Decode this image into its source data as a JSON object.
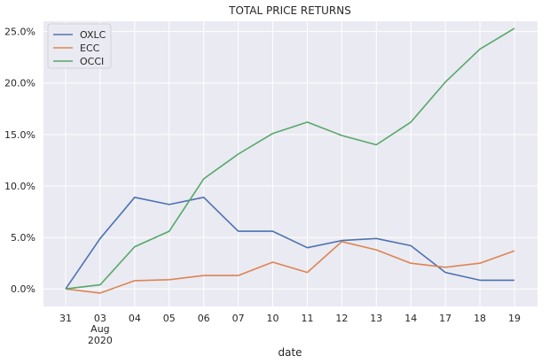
{
  "chart_data": {
    "type": "line",
    "title": "TOTAL PRICE RETURNS",
    "xlabel": "date",
    "ylabel": "",
    "categories": [
      "31",
      "03",
      "04",
      "05",
      "06",
      "07",
      "10",
      "11",
      "12",
      "13",
      "14",
      "17",
      "18",
      "19"
    ],
    "month_label": "Aug",
    "year_label": "2020",
    "month_label_index": 1,
    "ylim": [
      -0.017,
      0.26
    ],
    "yticks": [
      0.0,
      0.05,
      0.1,
      0.15,
      0.2,
      0.25
    ],
    "ytick_labels": [
      "0.0%",
      "5.0%",
      "10.0%",
      "15.0%",
      "20.0%",
      "25.0%"
    ],
    "grid": true,
    "legend_position": "top-left",
    "series": [
      {
        "name": "OXLC",
        "color": "#4c72b0",
        "values": [
          0.0,
          0.049,
          0.089,
          0.082,
          0.089,
          0.056,
          0.056,
          0.04,
          0.047,
          0.049,
          0.042,
          0.016,
          0.0085,
          0.0085
        ]
      },
      {
        "name": "ECC",
        "color": "#dd8452",
        "values": [
          0.0,
          -0.004,
          0.008,
          0.009,
          0.013,
          0.013,
          0.026,
          0.016,
          0.046,
          0.038,
          0.025,
          0.021,
          0.025,
          0.037
        ]
      },
      {
        "name": "OCCI",
        "color": "#55a868",
        "values": [
          0.0,
          0.004,
          0.041,
          0.056,
          0.107,
          0.131,
          0.151,
          0.162,
          0.149,
          0.14,
          0.162,
          0.201,
          0.233,
          0.253
        ]
      }
    ]
  }
}
